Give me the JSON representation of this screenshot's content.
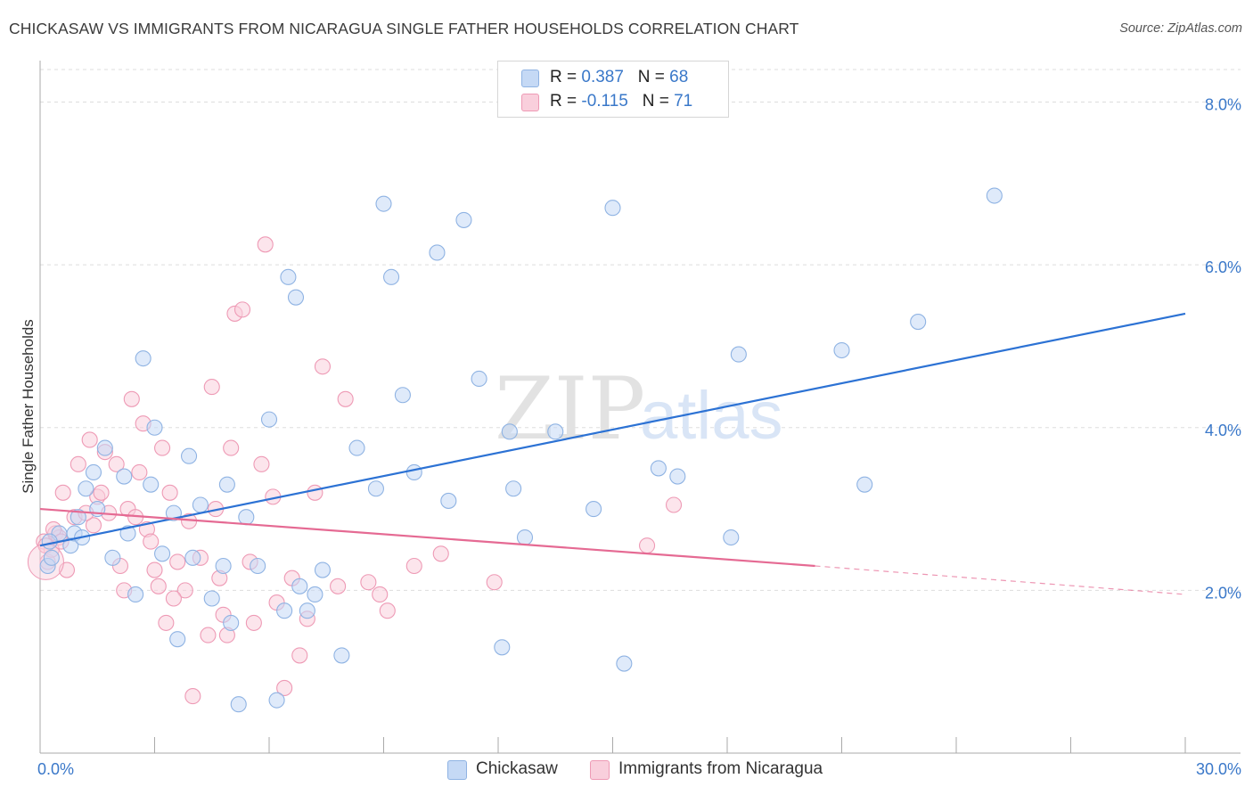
{
  "title": "CHICKASAW VS IMMIGRANTS FROM NICARAGUA SINGLE FATHER HOUSEHOLDS CORRELATION CHART",
  "source": "Source: ZipAtlas.com",
  "watermark": {
    "zip": "ZIP",
    "atlas": "atlas"
  },
  "legend": {
    "rows": [
      {
        "r_label": "R = ",
        "r_value": "0.387",
        "n_label": "N = ",
        "n_value": "68"
      },
      {
        "r_label": "R = ",
        "r_value": "-0.115",
        "n_label": "N = ",
        "n_value": "71"
      }
    ]
  },
  "colors": {
    "blue_fill": "#c5d9f5",
    "blue_stroke": "#8fb3e3",
    "blue_line": "#2c72d4",
    "pink_fill": "#f9cfdc",
    "pink_stroke": "#ee9ab5",
    "pink_line": "#e56a93",
    "tick": "#3a78c9",
    "grid": "#dddddd"
  },
  "chart_data": {
    "type": "scatter",
    "title": "CHICKASAW VS IMMIGRANTS FROM NICARAGUA SINGLE FATHER HOUSEHOLDS CORRELATION CHART",
    "xlabel": "",
    "ylabel": "Single Father Households",
    "xlim": [
      0,
      30
    ],
    "ylim": [
      0,
      8.4
    ],
    "x_tick_labels": [
      "0.0%",
      "30.0%"
    ],
    "y_ticks": [
      2,
      4,
      6,
      8
    ],
    "y_tick_labels": [
      "2.0%",
      "4.0%",
      "6.0%",
      "8.0%"
    ],
    "grid": true,
    "legend_position": "top-center",
    "series": [
      {
        "name": "Chickasaw",
        "color": "#8fb3e3",
        "trend": {
          "x0": 0,
          "y0": 2.55,
          "x1": 30,
          "y1": 5.4
        },
        "points": [
          [
            0.2,
            2.3
          ],
          [
            0.3,
            2.4
          ],
          [
            0.5,
            2.7
          ],
          [
            0.8,
            2.55
          ],
          [
            0.9,
            2.7
          ],
          [
            1.0,
            2.9
          ],
          [
            1.2,
            3.25
          ],
          [
            1.4,
            3.45
          ],
          [
            1.5,
            3.0
          ],
          [
            1.7,
            3.75
          ],
          [
            1.9,
            2.4
          ],
          [
            2.2,
            3.4
          ],
          [
            2.3,
            2.7
          ],
          [
            2.5,
            1.95
          ],
          [
            2.7,
            4.85
          ],
          [
            2.9,
            3.3
          ],
          [
            3.0,
            4.0
          ],
          [
            3.2,
            2.45
          ],
          [
            3.5,
            2.95
          ],
          [
            3.6,
            1.4
          ],
          [
            3.9,
            3.65
          ],
          [
            4.0,
            2.4
          ],
          [
            4.2,
            3.05
          ],
          [
            4.5,
            1.9
          ],
          [
            4.8,
            2.3
          ],
          [
            4.9,
            3.3
          ],
          [
            5.0,
            1.6
          ],
          [
            5.2,
            0.6
          ],
          [
            5.4,
            2.9
          ],
          [
            5.7,
            2.3
          ],
          [
            6.0,
            4.1
          ],
          [
            6.2,
            0.65
          ],
          [
            6.4,
            1.75
          ],
          [
            6.5,
            5.85
          ],
          [
            6.7,
            5.6
          ],
          [
            6.8,
            2.05
          ],
          [
            7.0,
            1.75
          ],
          [
            7.2,
            1.95
          ],
          [
            7.4,
            2.25
          ],
          [
            7.9,
            1.2
          ],
          [
            8.3,
            3.75
          ],
          [
            8.8,
            3.25
          ],
          [
            9.0,
            6.75
          ],
          [
            9.2,
            5.85
          ],
          [
            9.5,
            4.4
          ],
          [
            9.8,
            3.45
          ],
          [
            10.4,
            6.15
          ],
          [
            10.7,
            3.1
          ],
          [
            11.1,
            6.55
          ],
          [
            11.5,
            4.6
          ],
          [
            12.1,
            1.3
          ],
          [
            12.3,
            3.95
          ],
          [
            12.4,
            3.25
          ],
          [
            12.7,
            2.65
          ],
          [
            13.5,
            3.95
          ],
          [
            14.5,
            3.0
          ],
          [
            15.0,
            6.7
          ],
          [
            15.3,
            1.1
          ],
          [
            16.2,
            3.5
          ],
          [
            16.7,
            3.4
          ],
          [
            18.1,
            2.65
          ],
          [
            18.3,
            4.9
          ],
          [
            21.0,
            4.95
          ],
          [
            21.6,
            3.3
          ],
          [
            23.0,
            5.3
          ],
          [
            25.0,
            6.85
          ],
          [
            0.25,
            2.6
          ],
          [
            1.1,
            2.65
          ]
        ]
      },
      {
        "name": "Immigrants from Nicaragua",
        "color": "#ee9ab5",
        "trend": {
          "x0": 0,
          "y0": 3.0,
          "x1": 20.3,
          "y1": 2.3,
          "dashed_to_x": 30,
          "dashed_to_y": 1.95
        },
        "points": [
          [
            0.1,
            2.6
          ],
          [
            0.2,
            2.35
          ],
          [
            0.3,
            2.5
          ],
          [
            0.4,
            2.7
          ],
          [
            0.5,
            2.65
          ],
          [
            0.6,
            3.2
          ],
          [
            0.7,
            2.25
          ],
          [
            0.9,
            2.9
          ],
          [
            1.0,
            3.55
          ],
          [
            1.3,
            3.85
          ],
          [
            1.4,
            2.8
          ],
          [
            1.5,
            3.15
          ],
          [
            1.6,
            3.2
          ],
          [
            1.8,
            2.95
          ],
          [
            2.0,
            3.55
          ],
          [
            2.1,
            2.3
          ],
          [
            2.2,
            2.0
          ],
          [
            2.3,
            3.0
          ],
          [
            2.4,
            4.35
          ],
          [
            2.5,
            2.9
          ],
          [
            2.6,
            3.45
          ],
          [
            2.7,
            4.05
          ],
          [
            2.8,
            2.75
          ],
          [
            3.0,
            2.25
          ],
          [
            3.1,
            2.05
          ],
          [
            3.2,
            3.75
          ],
          [
            3.3,
            1.6
          ],
          [
            3.4,
            3.2
          ],
          [
            3.6,
            2.35
          ],
          [
            3.8,
            2.0
          ],
          [
            3.9,
            2.85
          ],
          [
            4.0,
            0.7
          ],
          [
            4.2,
            2.4
          ],
          [
            4.4,
            1.45
          ],
          [
            4.5,
            4.5
          ],
          [
            4.6,
            3.0
          ],
          [
            4.8,
            1.7
          ],
          [
            4.9,
            1.45
          ],
          [
            5.0,
            3.75
          ],
          [
            5.1,
            5.4
          ],
          [
            5.3,
            5.45
          ],
          [
            5.5,
            2.35
          ],
          [
            5.6,
            1.6
          ],
          [
            5.8,
            3.55
          ],
          [
            5.9,
            6.25
          ],
          [
            6.1,
            3.15
          ],
          [
            6.2,
            1.85
          ],
          [
            6.4,
            0.8
          ],
          [
            6.6,
            2.15
          ],
          [
            6.8,
            1.2
          ],
          [
            7.0,
            1.65
          ],
          [
            7.2,
            3.2
          ],
          [
            7.4,
            4.75
          ],
          [
            7.8,
            2.05
          ],
          [
            8.0,
            4.35
          ],
          [
            8.6,
            2.1
          ],
          [
            8.9,
            1.95
          ],
          [
            9.1,
            1.75
          ],
          [
            9.8,
            2.3
          ],
          [
            10.5,
            2.45
          ],
          [
            11.9,
            2.1
          ],
          [
            15.9,
            2.55
          ],
          [
            16.6,
            3.05
          ],
          [
            0.15,
            2.55
          ],
          [
            0.35,
            2.75
          ],
          [
            0.55,
            2.6
          ],
          [
            1.2,
            2.95
          ],
          [
            1.7,
            3.7
          ],
          [
            2.9,
            2.6
          ],
          [
            3.5,
            1.9
          ],
          [
            4.7,
            2.15
          ]
        ]
      }
    ]
  },
  "bottom_legend": [
    {
      "label": "Chickasaw"
    },
    {
      "label": "Immigrants from Nicaragua"
    }
  ]
}
